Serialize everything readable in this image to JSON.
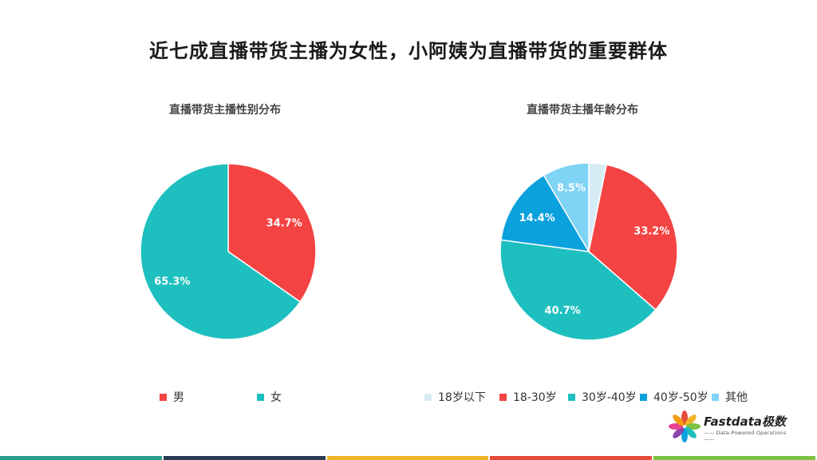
{
  "page": {
    "title": "近七成直播带货主播为女性，小阿姨为直播带货的重要群体"
  },
  "chart_data": [
    {
      "type": "pie",
      "title": "直播带货主播性别分布",
      "categories": [
        "男",
        "女"
      ],
      "values": [
        34.7,
        65.3
      ],
      "labels": [
        "34.7%",
        "65.3%"
      ],
      "colors": [
        "#f44343",
        "#1ebfbf"
      ],
      "legend_position": "bottom"
    },
    {
      "type": "pie",
      "title": "直播带货主播年龄分布",
      "categories": [
        "18岁以下",
        "18-30岁",
        "30岁-40岁",
        "40岁-50岁",
        "其他"
      ],
      "values": [
        3.2,
        33.2,
        40.7,
        14.4,
        8.5
      ],
      "labels": [
        "",
        "33.2%",
        "40.7%",
        "14.4%",
        "8.5%"
      ],
      "colors": [
        "#d6ecf5",
        "#f44343",
        "#1ebfbf",
        "#0aa1dd",
        "#7fd3f5"
      ],
      "legend_position": "bottom"
    }
  ],
  "logo": {
    "name": "Fastdata极数",
    "tagline": "—— Data-Powered Operations ——"
  },
  "footer_colors": [
    "#2a9d8f",
    "#2b3a55",
    "#f0b429",
    "#e64a3b",
    "#7cc242"
  ]
}
